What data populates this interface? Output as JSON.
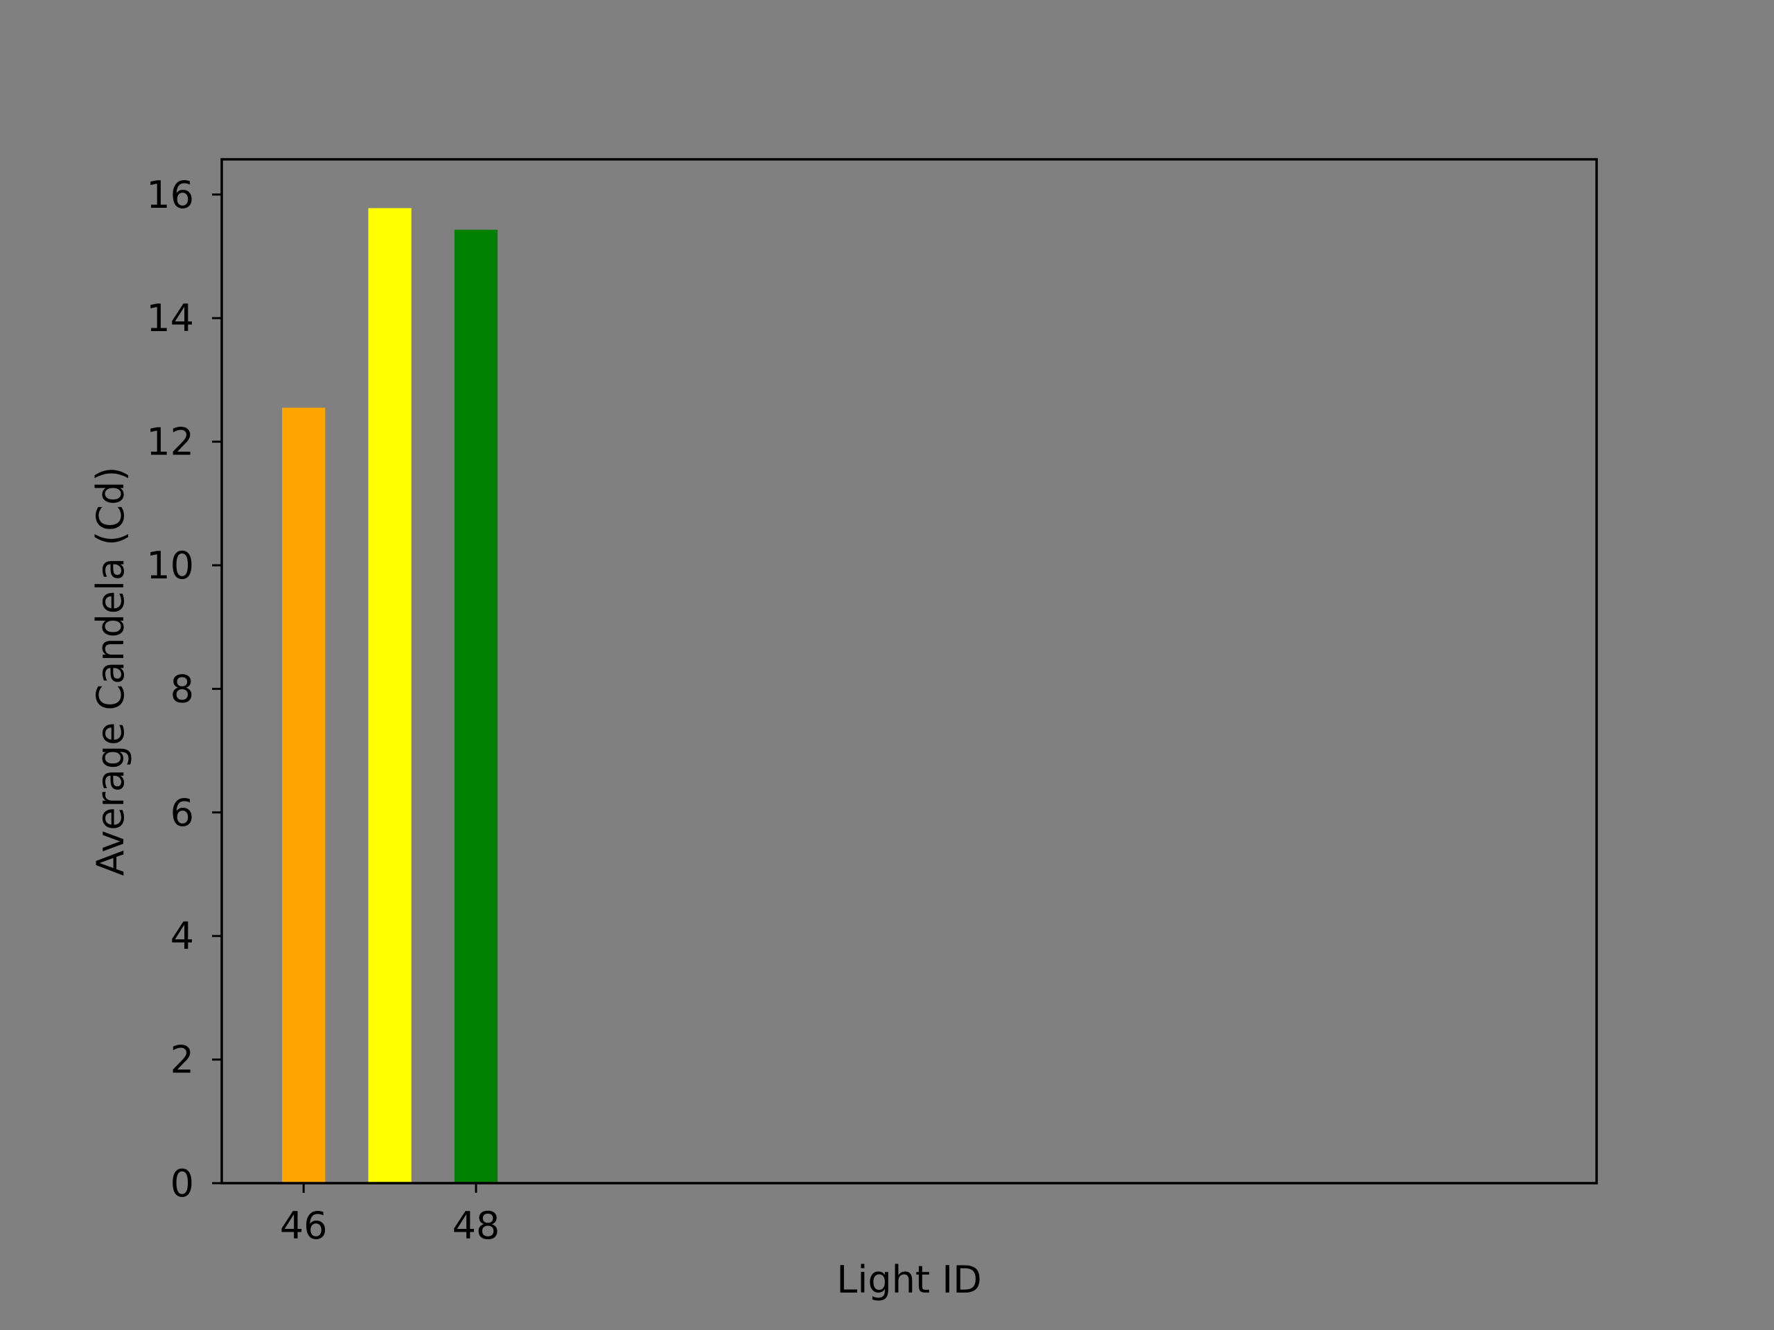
{
  "chart_data": {
    "type": "bar",
    "title": "",
    "xlabel": "Light ID",
    "ylabel": "Average Candela (Cd)",
    "x": [
      46,
      47,
      48
    ],
    "values": [
      12.55,
      15.78,
      15.43
    ],
    "bar_colors": [
      "#ffa500",
      "#ffff00",
      "#008000"
    ],
    "x_ticks": [
      46,
      48
    ],
    "y_ticks": [
      0,
      2,
      4,
      6,
      8,
      10,
      12,
      14,
      16
    ],
    "xlim": [
      45.05,
      61
    ],
    "ylim": [
      0,
      16.57
    ],
    "grid": false,
    "legend": "none",
    "background_color": "#808080"
  }
}
